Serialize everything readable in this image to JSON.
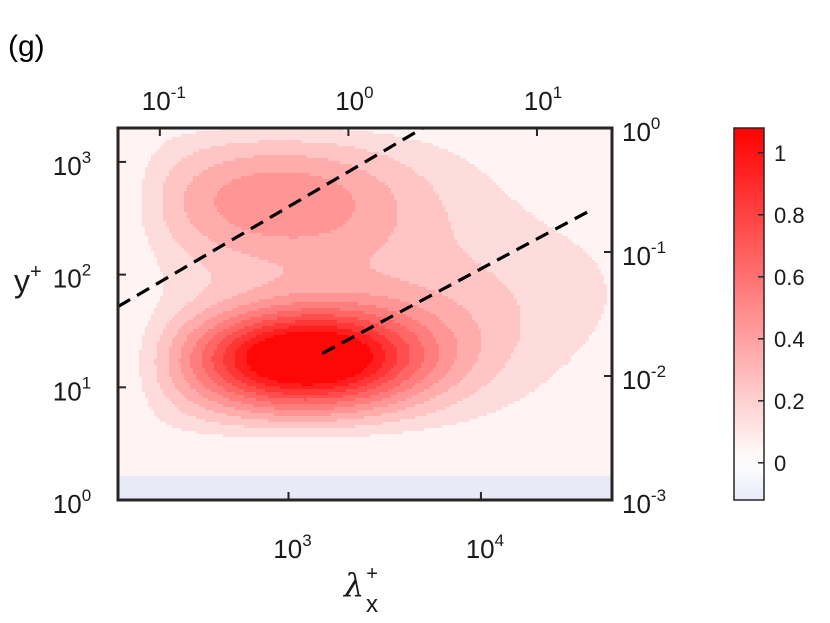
{
  "panel_label": "(g)",
  "chart_data": {
    "type": "heatmap",
    "subtype": "filled-contour",
    "title": "",
    "xlabel": {
      "base": "λ",
      "sup": "+",
      "sub": "x"
    },
    "ylabel": {
      "base": "y",
      "sup": "+"
    },
    "x_scale": "log",
    "y_scale": "log",
    "xlim": [
      130,
      48000
    ],
    "ylim": [
      1,
      2000
    ],
    "top_xlim": [
      0.06,
      25
    ],
    "right_ylim": [
      0.001,
      1
    ],
    "x_ticks": [
      {
        "value": 1000,
        "base": "10",
        "exp": "3"
      },
      {
        "value": 10000,
        "base": "10",
        "exp": "4"
      }
    ],
    "y_ticks": [
      {
        "value": 1,
        "base": "10",
        "exp": "0"
      },
      {
        "value": 10,
        "base": "10",
        "exp": "1"
      },
      {
        "value": 100,
        "base": "10",
        "exp": "2"
      },
      {
        "value": 1000,
        "base": "10",
        "exp": "3"
      }
    ],
    "top_x_ticks": [
      {
        "value": 0.1,
        "base": "10",
        "exp": "-1"
      },
      {
        "value": 1,
        "base": "10",
        "exp": "0"
      },
      {
        "value": 10,
        "base": "10",
        "exp": "1"
      }
    ],
    "right_y_ticks": [
      {
        "value": 0.001,
        "base": "10",
        "exp": "-3"
      },
      {
        "value": 0.01,
        "base": "10",
        "exp": "-2"
      },
      {
        "value": 0.1,
        "base": "10",
        "exp": "-1"
      },
      {
        "value": 1,
        "base": "10",
        "exp": "0"
      }
    ],
    "colorbar": {
      "range": [
        -0.12,
        1.08
      ],
      "ticks": [
        "0",
        "0.2",
        "0.4",
        "0.6",
        "0.8",
        "1"
      ],
      "tick_values": [
        0,
        0.2,
        0.4,
        0.6,
        0.8,
        1.0
      ],
      "colors": {
        "min": "#e8eaf8",
        "zero": "#ffffff",
        "max": "#ff0000"
      }
    },
    "contour_levels": [
      0.0,
      0.1,
      0.2,
      0.3,
      0.4,
      0.5,
      0.6,
      0.7,
      0.8,
      0.9,
      1.0
    ],
    "peaks": [
      {
        "x": 1200,
        "y": 18,
        "value": 1.0
      },
      {
        "x": 900,
        "y": 450,
        "value": 0.45
      }
    ],
    "dashed_lines": [
      {
        "points": [
          [
            130,
            52
          ],
          [
            5000,
            2000
          ]
        ]
      },
      {
        "points": [
          [
            1500,
            20
          ],
          [
            38000,
            380
          ]
        ]
      }
    ],
    "grid": false,
    "colors": {
      "axes": "#262626",
      "contour_line": "#000000",
      "dash": "#000000"
    }
  }
}
